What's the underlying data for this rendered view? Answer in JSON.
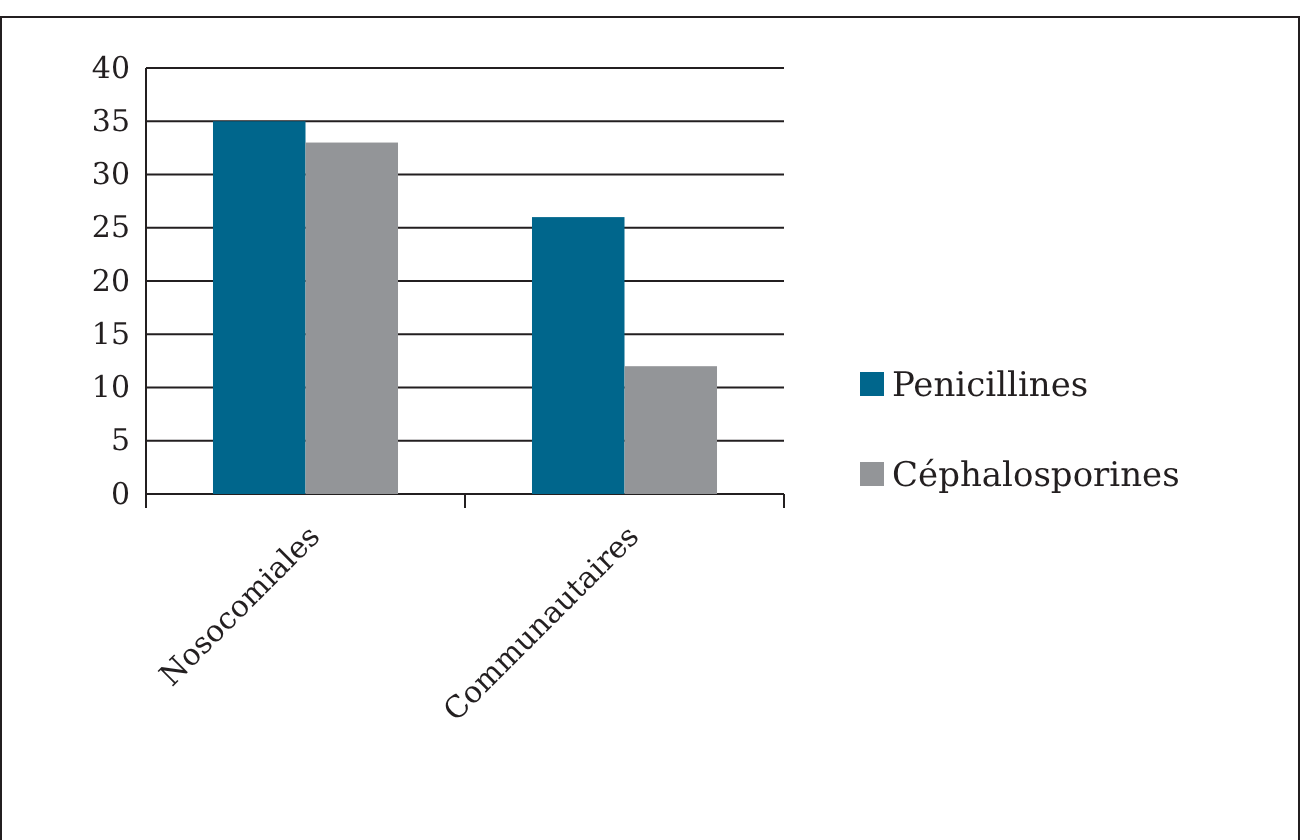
{
  "chart_data": {
    "type": "bar",
    "categories": [
      "Nosocomiales",
      "Communautaires"
    ],
    "series": [
      {
        "name": "Penicillines",
        "color": "#00668c",
        "values": [
          35,
          26
        ]
      },
      {
        "name": "Céphalosporines",
        "color": "#939598",
        "values": [
          33,
          12
        ]
      }
    ],
    "ylim": [
      0,
      40
    ],
    "yticks": [
      0,
      5,
      10,
      15,
      20,
      25,
      30,
      35,
      40
    ],
    "grid": "y",
    "legend": "right"
  }
}
